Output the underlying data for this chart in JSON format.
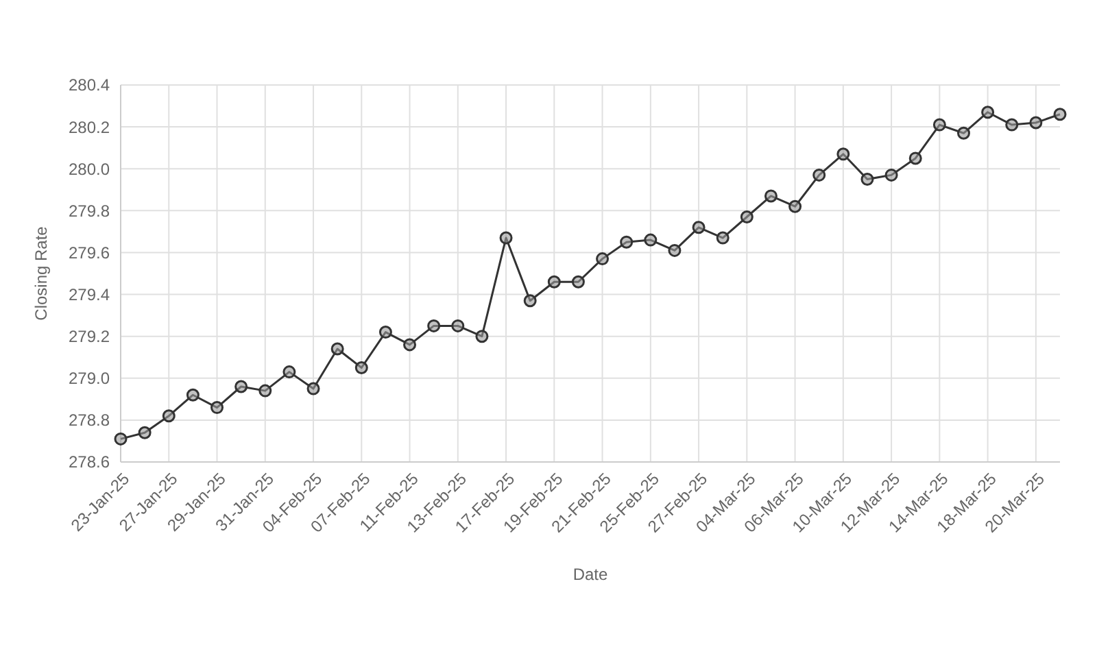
{
  "chart_data": {
    "type": "line",
    "xlabel": "Date",
    "ylabel": "Closing Rate",
    "categories": [
      "23-Jan-25",
      null,
      "27-Jan-25",
      null,
      "29-Jan-25",
      null,
      "31-Jan-25",
      null,
      "04-Feb-25",
      null,
      "07-Feb-25",
      null,
      "11-Feb-25",
      null,
      "13-Feb-25",
      null,
      "17-Feb-25",
      null,
      "19-Feb-25",
      null,
      "21-Feb-25",
      null,
      "25-Feb-25",
      null,
      "27-Feb-25",
      null,
      "04-Mar-25",
      null,
      "06-Mar-25",
      null,
      "10-Mar-25",
      null,
      "12-Mar-25",
      null,
      "14-Mar-25",
      null,
      "18-Mar-25",
      null,
      "20-Mar-25",
      null
    ],
    "series": [
      {
        "color": "#333333",
        "values": [
          278.71,
          278.74,
          278.82,
          278.92,
          278.86,
          278.96,
          278.94,
          279.03,
          278.95,
          279.14,
          279.05,
          279.22,
          279.16,
          279.25,
          279.25,
          279.2,
          279.67,
          279.37,
          279.46,
          279.46,
          279.57,
          279.65,
          279.66,
          279.61,
          279.72,
          279.67,
          279.77,
          279.87,
          279.82,
          279.97,
          280.07,
          279.95,
          279.97,
          280.05,
          280.21,
          280.17,
          280.27,
          280.21,
          280.22,
          280.26
        ]
      }
    ],
    "ylim": [
      278.6,
      280.4
    ],
    "yticks": [
      {
        "value": 278.6,
        "label": "278.6"
      },
      {
        "value": 278.8,
        "label": "278.8"
      },
      {
        "value": 279.0,
        "label": "279.0"
      },
      {
        "value": 279.2,
        "label": "279.2"
      },
      {
        "value": 279.4,
        "label": "279.4"
      },
      {
        "value": 279.6,
        "label": "279.6"
      },
      {
        "value": 279.8,
        "label": "279.8"
      },
      {
        "value": 280.0,
        "label": "280.0"
      },
      {
        "value": 280.2,
        "label": "280.2"
      },
      {
        "value": 280.4,
        "label": "280.4"
      }
    ],
    "grid": true,
    "marker": "circle",
    "line_style": "solid"
  }
}
